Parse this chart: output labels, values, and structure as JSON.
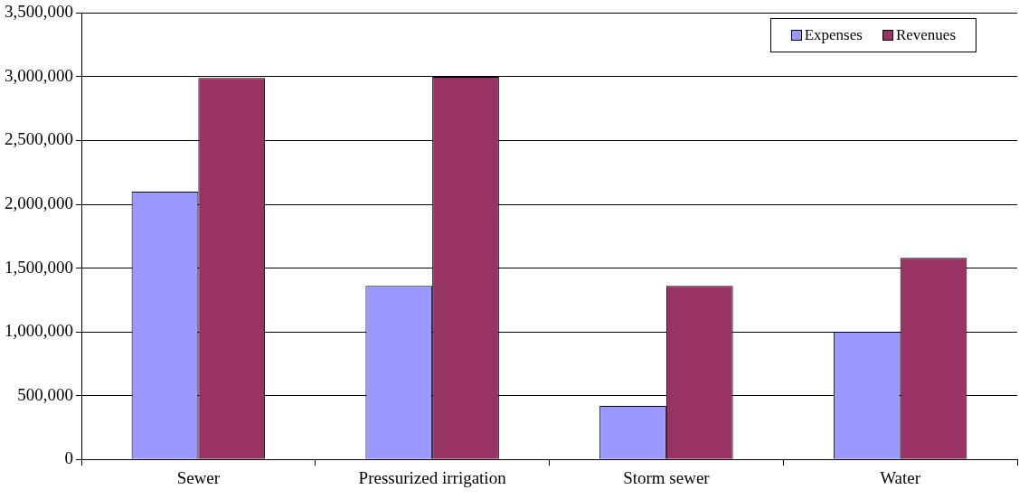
{
  "chart_data": {
    "type": "bar",
    "categories": [
      "Sewer",
      "Pressurized irrigation",
      "Storm sewer",
      "Water"
    ],
    "series": [
      {
        "name": "Expenses",
        "color": "#9999ff",
        "values": [
          2100000,
          1360000,
          420000,
          1000000
        ]
      },
      {
        "name": "Revenues",
        "color": "#993366",
        "values": [
          2990000,
          3000000,
          1360000,
          1580000
        ]
      }
    ],
    "ylim": [
      0,
      3500000
    ],
    "yticks": [
      0,
      {
        "value": 500000,
        "label": "500,000"
      },
      {
        "value": 1000000,
        "label": "1,000,000"
      },
      {
        "value": 1500000,
        "label": "1,500,000"
      },
      {
        "value": 2000000,
        "label": "2,000,000"
      },
      {
        "value": 2500000,
        "label": "2,500,000"
      },
      {
        "value": 3000000,
        "label": "3,000,000"
      },
      {
        "value": 3500000,
        "label": "3,500,000"
      }
    ],
    "grid": "y",
    "legend": "top right"
  }
}
